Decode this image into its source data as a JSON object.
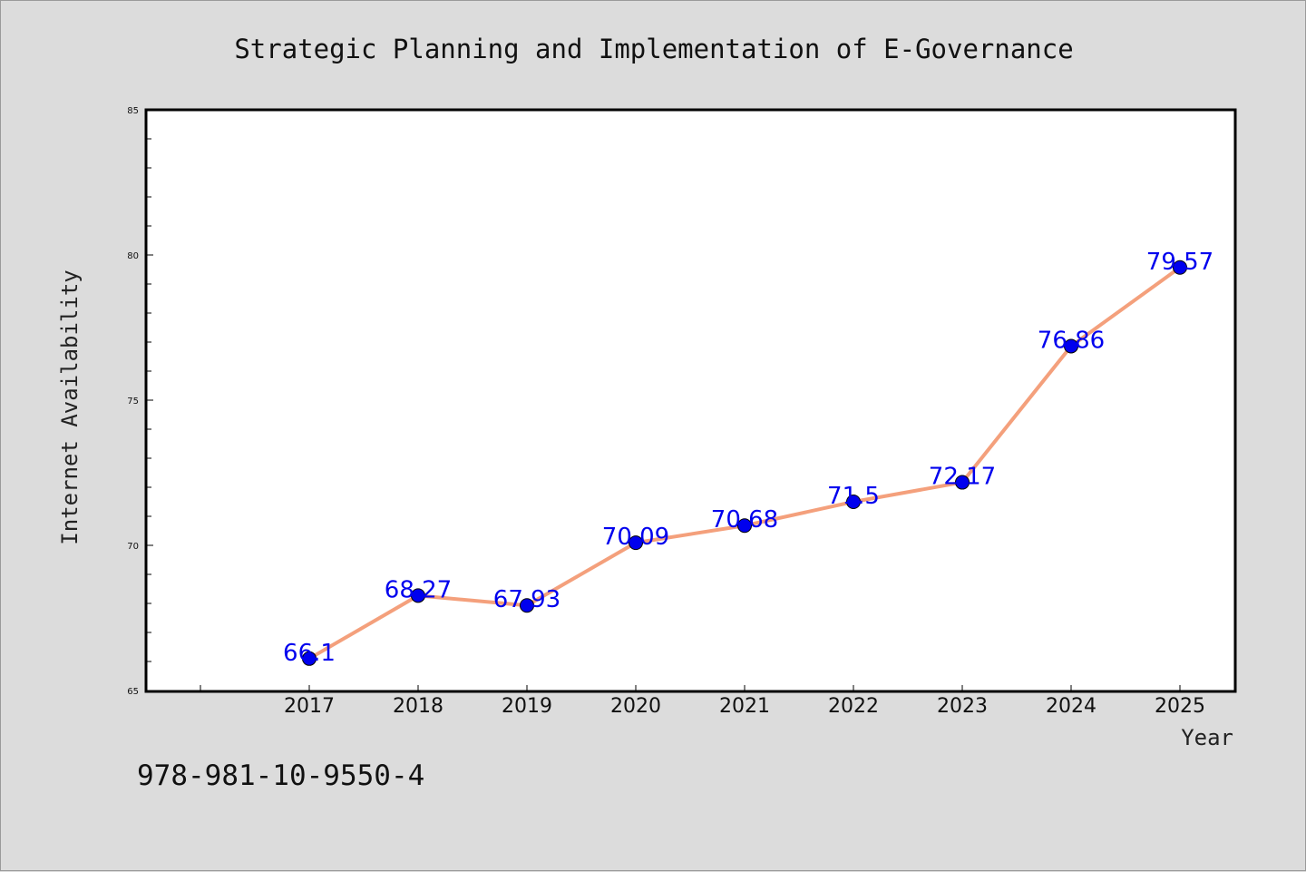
{
  "chart_data": {
    "type": "line",
    "title": "Strategic Planning and Implementation of E-Governance",
    "xlabel": "Year",
    "ylabel": "Internet Availability",
    "categories": [
      "2017",
      "2018",
      "2019",
      "2020",
      "2021",
      "2022",
      "2023",
      "2024",
      "2025"
    ],
    "series": [
      {
        "values": [
          66.1,
          68.27,
          67.93,
          70.09,
          70.68,
          71.5,
          72.17,
          76.86,
          79.57
        ],
        "labels": [
          "66.1",
          "68.27",
          "67.93",
          "70.09",
          "70.68",
          "71.5",
          "72.17",
          "76.86",
          "79.57"
        ],
        "line_color": "#f4a07c",
        "marker_color": "#0000ee"
      }
    ],
    "ylim": [
      65,
      85
    ],
    "yticks": [
      "65",
      "70",
      "75",
      "80",
      "85"
    ],
    "grid": false,
    "legend": "none",
    "background": "#dcdcdc",
    "plot_background": "#ffffff"
  },
  "footnote": "978-981-10-9550-4"
}
